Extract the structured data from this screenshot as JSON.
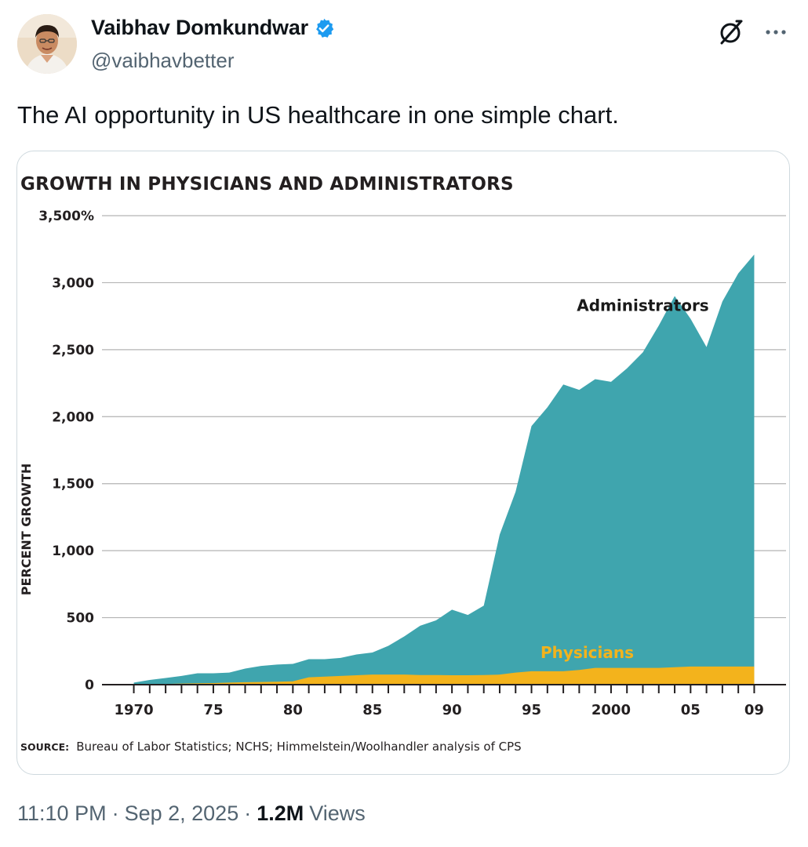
{
  "author": {
    "name": "Vaibhav Domkundwar",
    "handle": "@vaibhavbetter"
  },
  "tweet": {
    "text": "The AI opportunity in US healthcare in one simple chart."
  },
  "meta": {
    "time": "11:10 PM",
    "date": "Sep 2, 2025",
    "separator": "·",
    "views_count": "1.2M",
    "views_label": "Views"
  },
  "icons": {
    "verified": "verified-badge-icon",
    "grok": "grok-icon",
    "more": "more-icon"
  },
  "colors": {
    "administrators": "#3fa5ae",
    "physicians": "#f3b31c",
    "verified": "#1d9bf0",
    "gridline": "#b3b3b3"
  },
  "chart_data": {
    "type": "area",
    "title": "GROWTH IN PHYSICIANS AND ADMINISTRATORS",
    "ylabel": "PERCENT GROWTH",
    "xlabel": "",
    "ylim": [
      0,
      3500
    ],
    "xlim": [
      1968,
      2011
    ],
    "y_ticks": [
      {
        "value": 0,
        "label": "0"
      },
      {
        "value": 500,
        "label": "500"
      },
      {
        "value": 1000,
        "label": "1,000"
      },
      {
        "value": 1500,
        "label": "1,500"
      },
      {
        "value": 2000,
        "label": "2,000"
      },
      {
        "value": 2500,
        "label": "2,500"
      },
      {
        "value": 3000,
        "label": "3,000"
      },
      {
        "value": 3500,
        "label": "3,500%"
      }
    ],
    "x_ticks": [
      {
        "value": 1970,
        "label": "1970"
      },
      {
        "value": 1975,
        "label": "75"
      },
      {
        "value": 1980,
        "label": "80"
      },
      {
        "value": 1985,
        "label": "85"
      },
      {
        "value": 1990,
        "label": "90"
      },
      {
        "value": 1995,
        "label": "95"
      },
      {
        "value": 2000,
        "label": "2000"
      },
      {
        "value": 2005,
        "label": "05"
      },
      {
        "value": 2009,
        "label": "09"
      }
    ],
    "series": [
      {
        "name": "Administrators",
        "label_position": {
          "x": 2002,
          "y": 2790
        },
        "x": [
          1970,
          1971,
          1972,
          1973,
          1974,
          1975,
          1976,
          1977,
          1978,
          1979,
          1980,
          1981,
          1982,
          1983,
          1984,
          1985,
          1986,
          1987,
          1988,
          1989,
          1990,
          1991,
          1992,
          1993,
          1994,
          1995,
          1996,
          1997,
          1998,
          1999,
          2000,
          2001,
          2002,
          2003,
          2004,
          2005,
          2006,
          2007,
          2008,
          2009
        ],
        "values": [
          15,
          35,
          50,
          65,
          85,
          85,
          90,
          120,
          140,
          150,
          155,
          190,
          190,
          200,
          225,
          240,
          290,
          360,
          440,
          480,
          560,
          520,
          590,
          1120,
          1440,
          1930,
          2070,
          2240,
          2200,
          2280,
          2260,
          2360,
          2480,
          2680,
          2900,
          2730,
          2520,
          2860,
          3070,
          3210
        ]
      },
      {
        "name": "Physicians",
        "label_position": {
          "x": 1998.5,
          "y": 200
        },
        "x": [
          1970,
          1971,
          1972,
          1973,
          1974,
          1975,
          1976,
          1977,
          1978,
          1979,
          1980,
          1981,
          1982,
          1983,
          1984,
          1985,
          1986,
          1987,
          1988,
          1989,
          1990,
          1991,
          1992,
          1993,
          1994,
          1995,
          1996,
          1997,
          1998,
          1999,
          2000,
          2001,
          2002,
          2003,
          2004,
          2005,
          2006,
          2007,
          2008,
          2009
        ],
        "values": [
          0,
          2,
          5,
          8,
          10,
          12,
          15,
          18,
          20,
          22,
          25,
          55,
          60,
          65,
          70,
          75,
          75,
          75,
          72,
          72,
          70,
          70,
          72,
          75,
          90,
          100,
          100,
          100,
          110,
          125,
          125,
          125,
          125,
          125,
          130,
          135,
          135,
          135,
          135,
          135
        ]
      }
    ],
    "source_label": "SOURCE:",
    "source_text": "Bureau of Labor Statistics; NCHS; Himmelstein/Woolhandler analysis of CPS"
  }
}
